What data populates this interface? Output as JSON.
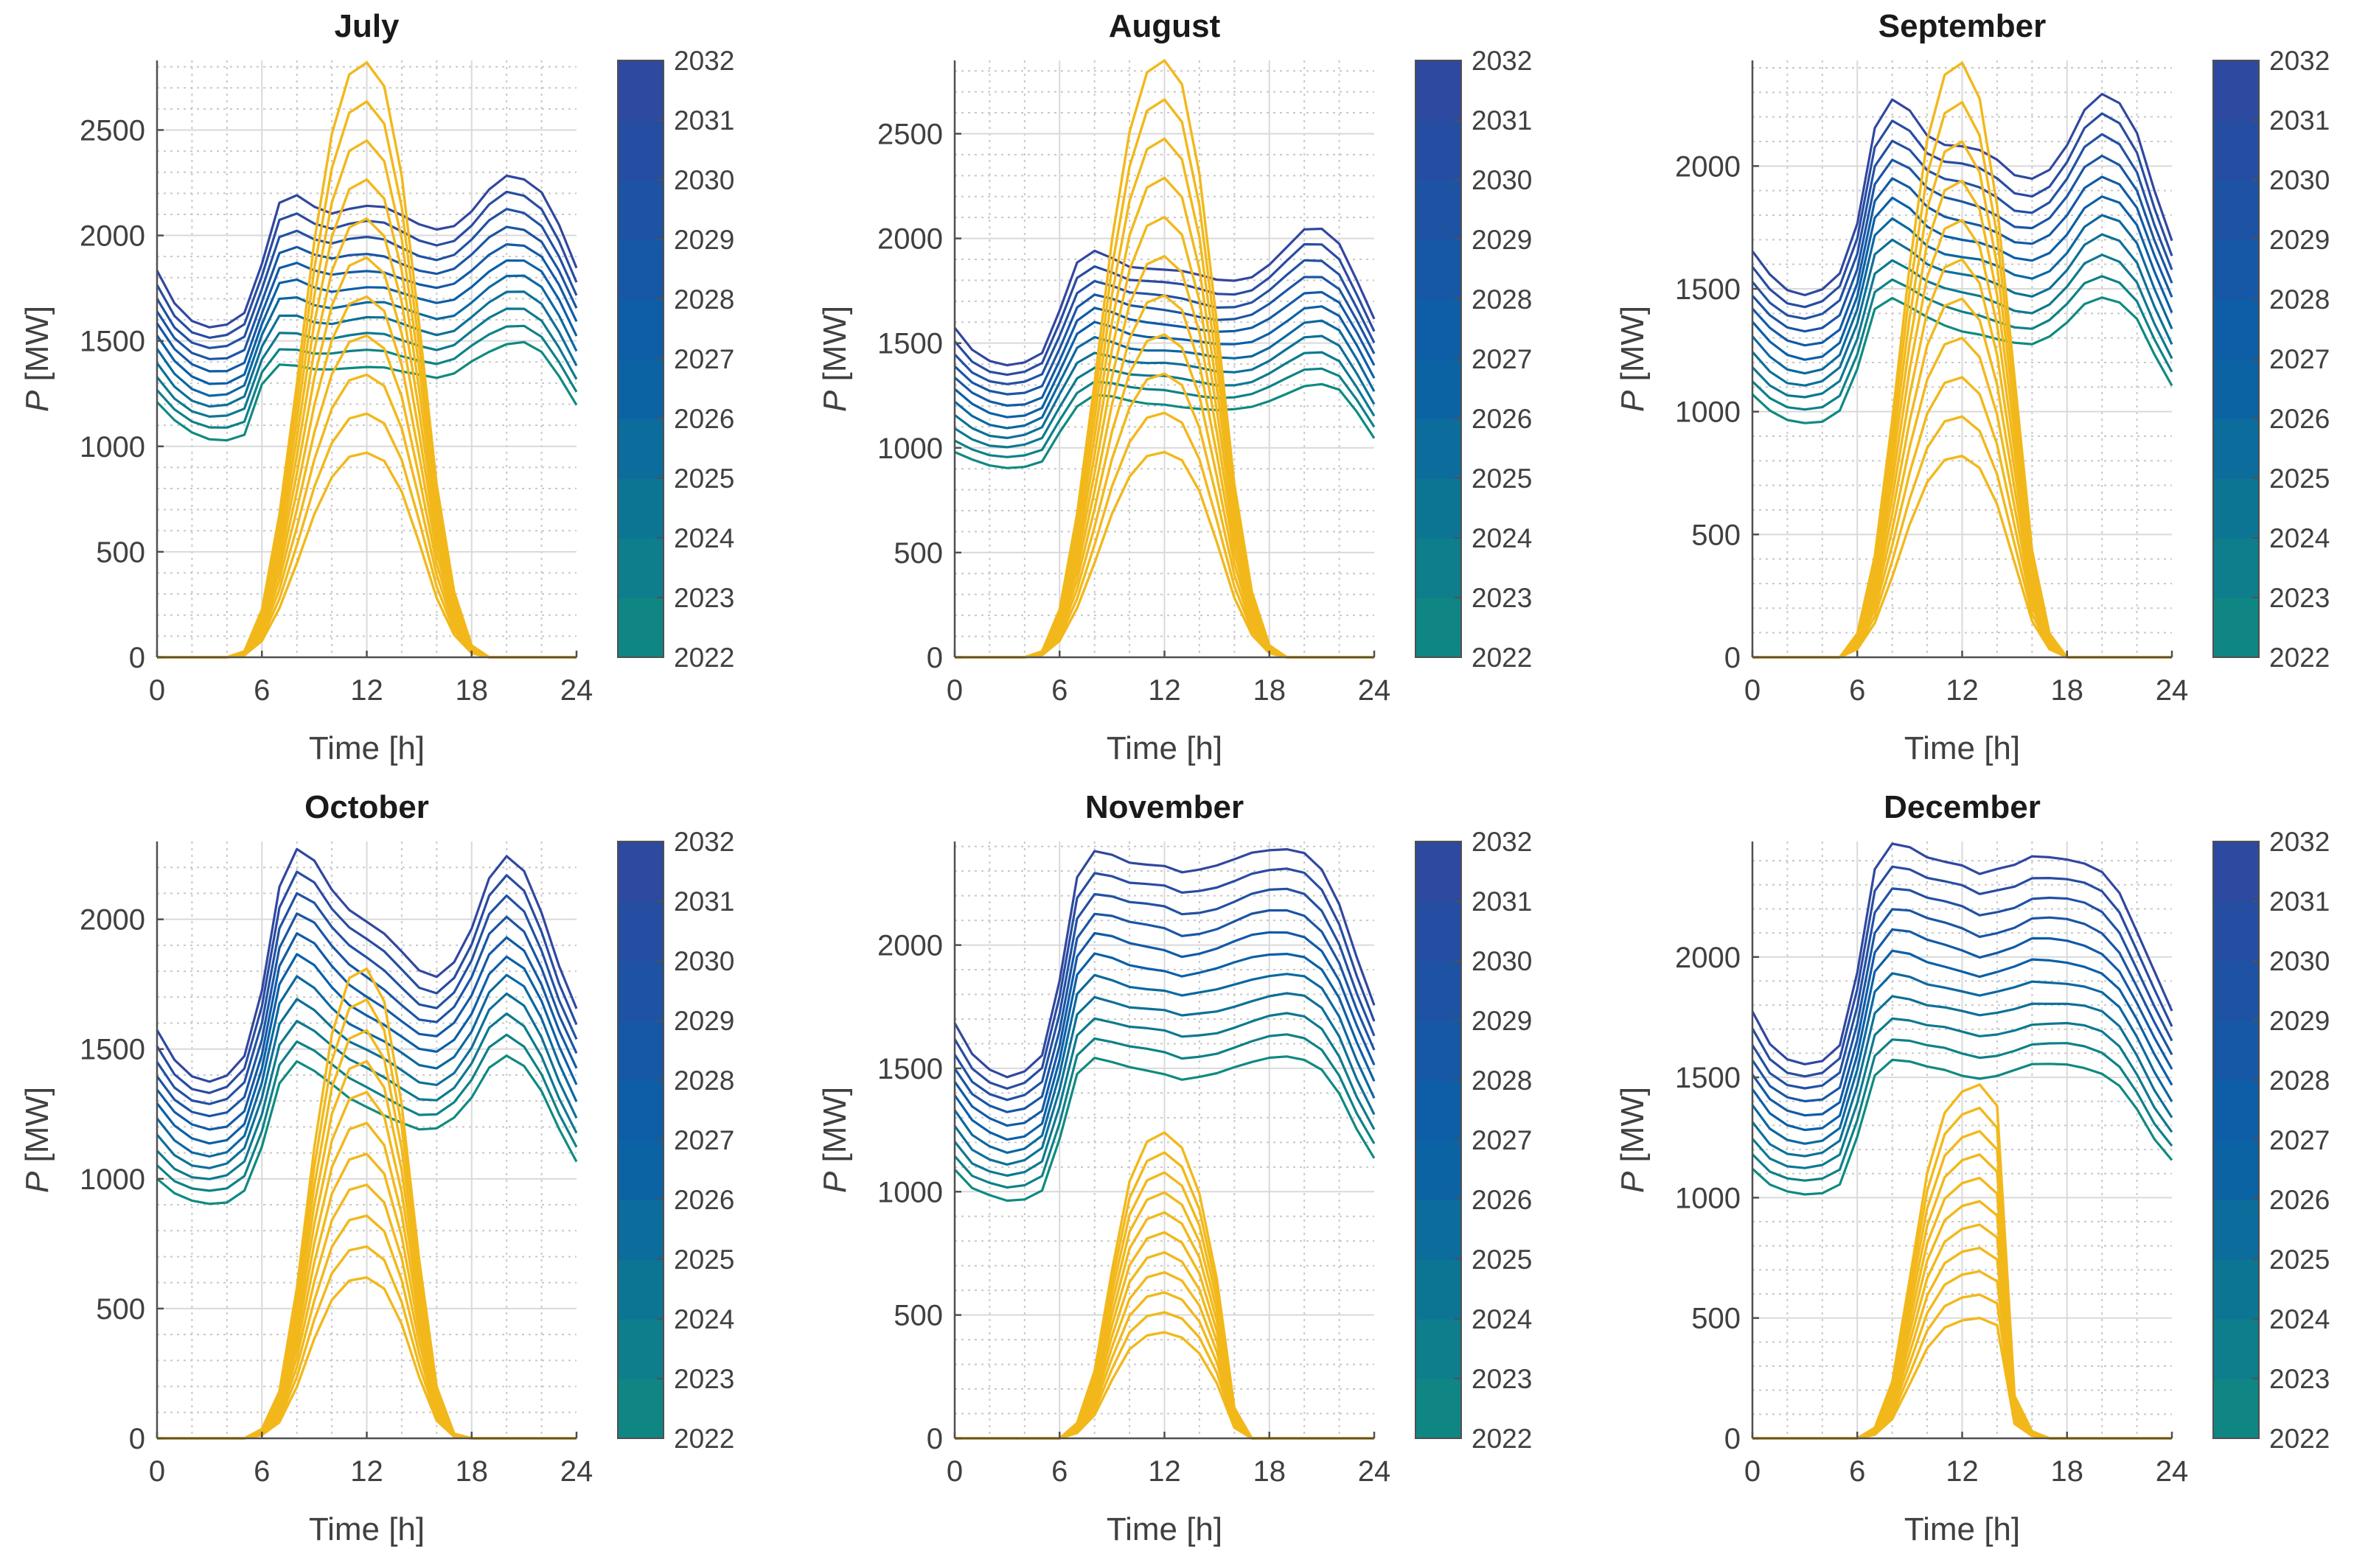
{
  "figure": {
    "colorbar_min_year": 2022,
    "colorbar_max_year": 2032
  },
  "colors": {
    "demand_low": "#0f8a80",
    "demand_mid": "#0a5fa8",
    "demand_high": "#31479f",
    "solar": "#f2b81b",
    "axis": "#505050",
    "grid_major": "#d9d9d9",
    "grid_minor": "#c8c8c8"
  },
  "chart_data": [
    {
      "type": "line",
      "title": "July",
      "xlabel": "Time [h]",
      "ylabel_var": "P",
      "ylabel_unit": " [MW]",
      "xlim": [
        0,
        24
      ],
      "ylim": [
        0,
        2830
      ],
      "xticks": [
        0,
        6,
        12,
        18,
        24
      ],
      "yticks": [
        0,
        500,
        1000,
        1500,
        2000,
        2500
      ],
      "colorbar": {
        "ticks": [
          "2022",
          "2023",
          "2024",
          "2025",
          "2026",
          "2027",
          "2028",
          "2029",
          "2030",
          "2031",
          "2032"
        ]
      },
      "demand_series": [
        {
          "name": "2022",
          "values": [
            1210,
            1120,
            1060,
            1030,
            1030,
            1060,
            1300,
            1390,
            1380,
            1360,
            1360,
            1370,
            1380,
            1380,
            1360,
            1340,
            1320,
            1340,
            1400,
            1450,
            1490,
            1500,
            1450,
            1330,
            1190
          ]
        },
        {
          "name": "2032",
          "values": [
            1830,
            1680,
            1600,
            1570,
            1580,
            1630,
            1860,
            2150,
            2190,
            2140,
            2110,
            2130,
            2140,
            2130,
            2090,
            2050,
            2030,
            2050,
            2120,
            2220,
            2280,
            2260,
            2200,
            2050,
            1850
          ]
        }
      ],
      "solar_series": [
        {
          "name": "2022",
          "peak": 970
        },
        {
          "name": "2032",
          "peak": 2820
        }
      ],
      "solar_shape": [
        0,
        0,
        0,
        0,
        0,
        0.01,
        0.08,
        0.24,
        0.46,
        0.7,
        0.88,
        0.98,
        1.0,
        0.96,
        0.81,
        0.56,
        0.29,
        0.11,
        0.02,
        0,
        0,
        0,
        0,
        0,
        0
      ],
      "num_series": 11
    },
    {
      "type": "line",
      "title": "August",
      "xlabel": "Time [h]",
      "ylabel_var": "P",
      "ylabel_unit": " [MW]",
      "xlim": [
        0,
        24
      ],
      "ylim": [
        0,
        2850
      ],
      "xticks": [
        0,
        6,
        12,
        18,
        24
      ],
      "yticks": [
        0,
        500,
        1000,
        1500,
        2000,
        2500
      ],
      "colorbar": {
        "ticks": [
          "2022",
          "2023",
          "2024",
          "2025",
          "2026",
          "2027",
          "2028",
          "2029",
          "2030",
          "2031",
          "2032"
        ]
      },
      "demand_series": [
        {
          "name": "2022",
          "values": [
            980,
            940,
            910,
            900,
            910,
            940,
            1080,
            1200,
            1250,
            1240,
            1220,
            1210,
            1210,
            1200,
            1190,
            1180,
            1180,
            1190,
            1220,
            1260,
            1300,
            1310,
            1280,
            1170,
            1040
          ]
        },
        {
          "name": "2032",
          "values": [
            1570,
            1470,
            1420,
            1400,
            1410,
            1450,
            1650,
            1880,
            1940,
            1910,
            1870,
            1860,
            1850,
            1840,
            1820,
            1800,
            1800,
            1820,
            1880,
            1960,
            2040,
            2040,
            1970,
            1800,
            1620
          ]
        }
      ],
      "solar_series": [
        {
          "name": "2022",
          "peak": 980
        },
        {
          "name": "2032",
          "peak": 2850
        }
      ],
      "solar_shape": [
        0,
        0,
        0,
        0,
        0,
        0.01,
        0.08,
        0.24,
        0.46,
        0.7,
        0.88,
        0.98,
        1.0,
        0.96,
        0.81,
        0.56,
        0.29,
        0.11,
        0.02,
        0,
        0,
        0,
        0,
        0,
        0
      ],
      "num_series": 11
    },
    {
      "type": "line",
      "title": "September",
      "xlabel": "Time [h]",
      "ylabel_var": "P",
      "ylabel_unit": " [MW]",
      "xlim": [
        0,
        24
      ],
      "ylim": [
        0,
        2430
      ],
      "xticks": [
        0,
        6,
        12,
        18,
        24
      ],
      "yticks": [
        0,
        500,
        1000,
        1500,
        2000
      ],
      "colorbar": {
        "ticks": [
          "2022",
          "2023",
          "2024",
          "2025",
          "2026",
          "2027",
          "2028",
          "2029",
          "2030",
          "2031",
          "2032"
        ]
      },
      "demand_series": [
        {
          "name": "2022",
          "values": [
            1070,
            1000,
            960,
            950,
            960,
            1010,
            1180,
            1420,
            1460,
            1420,
            1380,
            1350,
            1330,
            1320,
            1300,
            1280,
            1270,
            1300,
            1360,
            1440,
            1470,
            1450,
            1380,
            1230,
            1100
          ]
        },
        {
          "name": "2032",
          "values": [
            1650,
            1560,
            1500,
            1480,
            1500,
            1560,
            1760,
            2150,
            2270,
            2230,
            2130,
            2090,
            2080,
            2060,
            2020,
            1960,
            1950,
            1990,
            2090,
            2230,
            2290,
            2250,
            2130,
            1900,
            1700
          ]
        }
      ],
      "solar_series": [
        {
          "name": "2022",
          "peak": 820
        },
        {
          "name": "2032",
          "peak": 2420
        }
      ],
      "solar_shape": [
        0,
        0,
        0,
        0,
        0,
        0,
        0.04,
        0.17,
        0.4,
        0.66,
        0.87,
        0.98,
        1.0,
        0.94,
        0.76,
        0.47,
        0.18,
        0.04,
        0,
        0,
        0,
        0,
        0,
        0,
        0
      ],
      "num_series": 11
    },
    {
      "type": "line",
      "title": "October",
      "xlabel": "Time [h]",
      "ylabel_var": "P",
      "ylabel_unit": " [MW]",
      "xlim": [
        0,
        24
      ],
      "ylim": [
        0,
        2300
      ],
      "xticks": [
        0,
        6,
        12,
        18,
        24
      ],
      "yticks": [
        0,
        500,
        1000,
        1500,
        2000
      ],
      "colorbar": {
        "ticks": [
          "2022",
          "2023",
          "2024",
          "2025",
          "2026",
          "2027",
          "2028",
          "2029",
          "2030",
          "2031",
          "2032"
        ]
      },
      "demand_series": [
        {
          "name": "2022",
          "values": [
            1000,
            940,
            910,
            900,
            910,
            960,
            1130,
            1370,
            1450,
            1410,
            1360,
            1310,
            1280,
            1250,
            1220,
            1190,
            1190,
            1230,
            1310,
            1430,
            1480,
            1440,
            1340,
            1190,
            1060
          ]
        },
        {
          "name": "2032",
          "values": [
            1570,
            1460,
            1400,
            1380,
            1400,
            1470,
            1720,
            2120,
            2270,
            2230,
            2120,
            2040,
            1990,
            1940,
            1870,
            1800,
            1780,
            1840,
            1970,
            2160,
            2240,
            2180,
            2020,
            1820,
            1660
          ]
        }
      ],
      "solar_series": [
        {
          "name": "2022",
          "peak": 620
        },
        {
          "name": "2032",
          "peak": 1810
        }
      ],
      "solar_shape": [
        0,
        0,
        0,
        0,
        0,
        0,
        0.02,
        0.1,
        0.32,
        0.62,
        0.86,
        0.98,
        1.0,
        0.93,
        0.71,
        0.38,
        0.11,
        0.01,
        0,
        0,
        0,
        0,
        0,
        0,
        0
      ],
      "num_series": 11
    },
    {
      "type": "line",
      "title": "November",
      "xlabel": "Time [h]",
      "ylabel_var": "P",
      "ylabel_unit": " [MW]",
      "xlim": [
        0,
        24
      ],
      "ylim": [
        0,
        2420
      ],
      "xticks": [
        0,
        6,
        12,
        18,
        24
      ],
      "yticks": [
        0,
        500,
        1000,
        1500,
        2000
      ],
      "colorbar": {
        "ticks": [
          "2022",
          "2023",
          "2024",
          "2025",
          "2026",
          "2027",
          "2028",
          "2029",
          "2030",
          "2031",
          "2032"
        ]
      },
      "demand_series": [
        {
          "name": "2022",
          "values": [
            1090,
            1010,
            980,
            960,
            970,
            1010,
            1220,
            1480,
            1540,
            1520,
            1500,
            1490,
            1480,
            1460,
            1470,
            1480,
            1500,
            1520,
            1540,
            1550,
            1540,
            1500,
            1400,
            1250,
            1130
          ]
        },
        {
          "name": "2032",
          "values": [
            1680,
            1560,
            1500,
            1470,
            1490,
            1550,
            1850,
            2270,
            2380,
            2370,
            2340,
            2330,
            2320,
            2290,
            2300,
            2320,
            2350,
            2380,
            2390,
            2390,
            2370,
            2300,
            2160,
            1950,
            1760
          ]
        }
      ],
      "solar_series": [
        {
          "name": "2022",
          "peak": 430
        },
        {
          "name": "2032",
          "peak": 1240
        }
      ],
      "solar_shape": [
        0,
        0,
        0,
        0,
        0,
        0,
        0,
        0.05,
        0.22,
        0.55,
        0.84,
        0.97,
        1.0,
        0.95,
        0.8,
        0.52,
        0.1,
        0,
        0,
        0,
        0,
        0,
        0,
        0,
        0
      ],
      "num_series": 11
    },
    {
      "type": "line",
      "title": "December",
      "xlabel": "Time [h]",
      "ylabel_var": "P",
      "ylabel_unit": " [MW]",
      "xlim": [
        0,
        24
      ],
      "ylim": [
        0,
        2480
      ],
      "xticks": [
        0,
        6,
        12,
        18,
        24
      ],
      "yticks": [
        0,
        500,
        1000,
        1500,
        2000
      ],
      "colorbar": {
        "ticks": [
          "2022",
          "2023",
          "2024",
          "2025",
          "2026",
          "2027",
          "2028",
          "2029",
          "2030",
          "2031",
          "2032"
        ]
      },
      "demand_series": [
        {
          "name": "2022",
          "values": [
            1120,
            1050,
            1020,
            1010,
            1020,
            1060,
            1260,
            1510,
            1570,
            1560,
            1540,
            1530,
            1510,
            1500,
            1510,
            1530,
            1550,
            1550,
            1550,
            1540,
            1520,
            1470,
            1370,
            1240,
            1150
          ]
        },
        {
          "name": "2032",
          "values": [
            1770,
            1640,
            1580,
            1560,
            1570,
            1630,
            1930,
            2360,
            2470,
            2460,
            2420,
            2400,
            2380,
            2340,
            2360,
            2380,
            2420,
            2420,
            2410,
            2390,
            2350,
            2260,
            2100,
            1940,
            1780
          ]
        }
      ],
      "solar_series": [
        {
          "name": "2022",
          "peak": 500
        },
        {
          "name": "2032",
          "peak": 1470
        }
      ],
      "solar_shape": [
        0,
        0,
        0,
        0,
        0,
        0,
        0,
        0.03,
        0.16,
        0.45,
        0.75,
        0.92,
        0.98,
        1.0,
        0.94,
        0.12,
        0.02,
        0,
        0,
        0,
        0,
        0,
        0,
        0,
        0
      ],
      "num_series": 11
    }
  ]
}
